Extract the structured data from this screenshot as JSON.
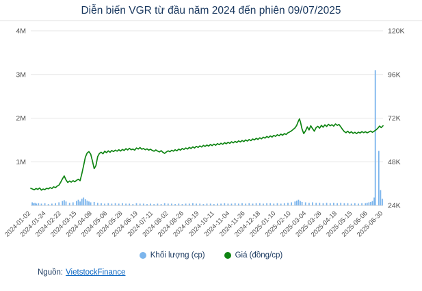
{
  "header": {
    "title": "Diễn biến VGR từ đầu năm 2024 đến phiên 09/07/2025"
  },
  "legend": {
    "volume": "Khối lượng (cp)",
    "price": "Giá (đồng/cp)"
  },
  "source": {
    "prefix": "Nguồn:",
    "link": "VietstockFinance"
  },
  "colors": {
    "price_line": "#0e8412",
    "volume_bar": "#7cb5ec",
    "grid": "#e6e6e6",
    "axis_line": "#cfcfcf",
    "axis_text": "#4d4d4d",
    "title_text": "#17365d",
    "link": "#0563c1"
  },
  "chart_data": {
    "type": "combo-bar-line",
    "title": "Diễn biến VGR từ đầu năm 2024 đến phiên 09/07/2025",
    "x_unit": "fraction of date range 2024-01-02 to 2025-07-09 (ticks evenly spaced)",
    "x_tick_labels": [
      "2024-01-02",
      "2024-01-24",
      "2024-02-22",
      "2024-03-15",
      "2024-04-08",
      "2024-05-06",
      "2024-05-28",
      "2024-06-19",
      "2024-07-11",
      "2024-08-02",
      "2024-08-26",
      "2024-09-19",
      "2024-10-11",
      "2024-11-04",
      "2024-11-26",
      "2024-12-18",
      "2025-01-10",
      "2025-02-10",
      "2025-03-04",
      "2025-03-26",
      "2025-04-18",
      "2025-05-15",
      "2025-06-06",
      "2025-06-30"
    ],
    "left_axis": {
      "name": "Khối lượng (cp)",
      "ticks": [
        "4M",
        "3M",
        "2M",
        "1M"
      ],
      "min_m": 0,
      "max_m": 4
    },
    "right_axis": {
      "name": "Giá (đồng/cp)",
      "ticks": [
        "120K",
        "96K",
        "72K",
        "48K",
        "24K"
      ],
      "min_k": 24,
      "max_k": 120
    },
    "price_series": {
      "name": "Giá (đồng/cp)",
      "type": "line",
      "values_unit": "nghìn đồng/cp (K)",
      "points": [
        [
          0.0,
          33.4
        ],
        [
          0.005,
          33.0
        ],
        [
          0.01,
          32.6
        ],
        [
          0.015,
          33.3
        ],
        [
          0.02,
          32.8
        ],
        [
          0.025,
          33.6
        ],
        [
          0.03,
          32.4
        ],
        [
          0.035,
          33.0
        ],
        [
          0.04,
          32.7
        ],
        [
          0.045,
          33.4
        ],
        [
          0.05,
          33.1
        ],
        [
          0.055,
          33.8
        ],
        [
          0.06,
          33.3
        ],
        [
          0.065,
          34.2
        ],
        [
          0.07,
          33.8
        ],
        [
          0.075,
          34.6
        ],
        [
          0.08,
          35.2
        ],
        [
          0.085,
          36.8
        ],
        [
          0.09,
          38.6
        ],
        [
          0.095,
          40.2
        ],
        [
          0.1,
          38.0
        ],
        [
          0.105,
          36.6
        ],
        [
          0.11,
          37.4
        ],
        [
          0.115,
          36.8
        ],
        [
          0.12,
          37.6
        ],
        [
          0.125,
          37.0
        ],
        [
          0.13,
          37.8
        ],
        [
          0.135,
          38.4
        ],
        [
          0.14,
          37.6
        ],
        [
          0.145,
          41.5
        ],
        [
          0.15,
          46.0
        ],
        [
          0.155,
          50.5
        ],
        [
          0.16,
          52.8
        ],
        [
          0.165,
          53.6
        ],
        [
          0.17,
          52.2
        ],
        [
          0.175,
          48.5
        ],
        [
          0.18,
          44.2
        ],
        [
          0.185,
          46.0
        ],
        [
          0.19,
          50.8
        ],
        [
          0.195,
          52.6
        ],
        [
          0.2,
          53.2
        ],
        [
          0.205,
          52.4
        ],
        [
          0.21,
          53.8
        ],
        [
          0.215,
          53.0
        ],
        [
          0.22,
          54.0
        ],
        [
          0.225,
          53.2
        ],
        [
          0.23,
          54.2
        ],
        [
          0.235,
          53.6
        ],
        [
          0.24,
          54.4
        ],
        [
          0.245,
          53.8
        ],
        [
          0.25,
          54.6
        ],
        [
          0.255,
          53.9
        ],
        [
          0.26,
          54.8
        ],
        [
          0.265,
          54.2
        ],
        [
          0.27,
          55.2
        ],
        [
          0.275,
          54.5
        ],
        [
          0.28,
          55.4
        ],
        [
          0.285,
          54.6
        ],
        [
          0.29,
          55.0
        ],
        [
          0.295,
          54.4
        ],
        [
          0.3,
          55.6
        ],
        [
          0.305,
          55.0
        ],
        [
          0.31,
          55.8
        ],
        [
          0.315,
          54.9
        ],
        [
          0.32,
          55.3
        ],
        [
          0.325,
          54.6
        ],
        [
          0.33,
          55.1
        ],
        [
          0.335,
          54.4
        ],
        [
          0.34,
          54.9
        ],
        [
          0.345,
          54.2
        ],
        [
          0.35,
          53.8
        ],
        [
          0.355,
          54.5
        ],
        [
          0.36,
          53.9
        ],
        [
          0.365,
          53.4
        ],
        [
          0.37,
          54.1
        ],
        [
          0.375,
          53.2
        ],
        [
          0.38,
          52.6
        ],
        [
          0.385,
          53.4
        ],
        [
          0.39,
          54.0
        ],
        [
          0.395,
          53.5
        ],
        [
          0.4,
          54.3
        ],
        [
          0.405,
          53.8
        ],
        [
          0.41,
          54.6
        ],
        [
          0.415,
          54.0
        ],
        [
          0.42,
          55.0
        ],
        [
          0.425,
          54.4
        ],
        [
          0.43,
          55.3
        ],
        [
          0.435,
          54.8
        ],
        [
          0.44,
          55.6
        ],
        [
          0.445,
          55.0
        ],
        [
          0.45,
          55.9
        ],
        [
          0.455,
          55.3
        ],
        [
          0.46,
          56.2
        ],
        [
          0.465,
          55.6
        ],
        [
          0.47,
          56.5
        ],
        [
          0.475,
          55.9
        ],
        [
          0.48,
          56.7
        ],
        [
          0.485,
          56.1
        ],
        [
          0.49,
          57.0
        ],
        [
          0.495,
          56.4
        ],
        [
          0.5,
          57.2
        ],
        [
          0.505,
          56.6
        ],
        [
          0.51,
          57.5
        ],
        [
          0.515,
          56.9
        ],
        [
          0.52,
          57.7
        ],
        [
          0.525,
          57.1
        ],
        [
          0.53,
          58.0
        ],
        [
          0.535,
          57.4
        ],
        [
          0.54,
          58.2
        ],
        [
          0.545,
          57.6
        ],
        [
          0.55,
          58.5
        ],
        [
          0.555,
          57.9
        ],
        [
          0.56,
          58.7
        ],
        [
          0.565,
          58.1
        ],
        [
          0.57,
          59.0
        ],
        [
          0.575,
          58.4
        ],
        [
          0.58,
          59.2
        ],
        [
          0.585,
          58.6
        ],
        [
          0.59,
          59.5
        ],
        [
          0.595,
          58.9
        ],
        [
          0.6,
          59.7
        ],
        [
          0.605,
          59.1
        ],
        [
          0.61,
          60.0
        ],
        [
          0.615,
          59.4
        ],
        [
          0.62,
          60.2
        ],
        [
          0.625,
          59.6
        ],
        [
          0.63,
          60.5
        ],
        [
          0.635,
          60.0
        ],
        [
          0.64,
          60.9
        ],
        [
          0.645,
          60.3
        ],
        [
          0.65,
          61.2
        ],
        [
          0.655,
          60.6
        ],
        [
          0.66,
          61.5
        ],
        [
          0.665,
          61.0
        ],
        [
          0.67,
          61.9
        ],
        [
          0.675,
          61.3
        ],
        [
          0.68,
          62.2
        ],
        [
          0.685,
          61.6
        ],
        [
          0.69,
          62.5
        ],
        [
          0.695,
          62.0
        ],
        [
          0.7,
          62.9
        ],
        [
          0.705,
          62.3
        ],
        [
          0.71,
          63.2
        ],
        [
          0.715,
          62.6
        ],
        [
          0.72,
          63.5
        ],
        [
          0.725,
          63.0
        ],
        [
          0.73,
          63.9
        ],
        [
          0.735,
          64.4
        ],
        [
          0.74,
          65.0
        ],
        [
          0.745,
          65.8
        ],
        [
          0.75,
          66.6
        ],
        [
          0.755,
          68.0
        ],
        [
          0.76,
          70.5
        ],
        [
          0.763,
          71.6
        ],
        [
          0.766,
          69.5
        ],
        [
          0.77,
          66.0
        ],
        [
          0.775,
          63.5
        ],
        [
          0.78,
          65.0
        ],
        [
          0.785,
          67.2
        ],
        [
          0.79,
          65.5
        ],
        [
          0.795,
          67.8
        ],
        [
          0.8,
          66.2
        ],
        [
          0.805,
          64.8
        ],
        [
          0.81,
          66.8
        ],
        [
          0.815,
          67.5
        ],
        [
          0.82,
          66.5
        ],
        [
          0.825,
          68.0
        ],
        [
          0.83,
          67.0
        ],
        [
          0.835,
          68.3
        ],
        [
          0.84,
          67.4
        ],
        [
          0.845,
          68.6
        ],
        [
          0.85,
          67.8
        ],
        [
          0.855,
          68.4
        ],
        [
          0.86,
          67.6
        ],
        [
          0.865,
          68.8
        ],
        [
          0.87,
          68.0
        ],
        [
          0.875,
          68.5
        ],
        [
          0.88,
          67.2
        ],
        [
          0.885,
          65.8
        ],
        [
          0.89,
          64.6
        ],
        [
          0.895,
          64.0
        ],
        [
          0.9,
          64.8
        ],
        [
          0.905,
          63.8
        ],
        [
          0.91,
          64.5
        ],
        [
          0.915,
          63.6
        ],
        [
          0.92,
          64.2
        ],
        [
          0.925,
          63.5
        ],
        [
          0.93,
          64.3
        ],
        [
          0.935,
          63.8
        ],
        [
          0.94,
          64.6
        ],
        [
          0.945,
          64.0
        ],
        [
          0.95,
          64.5
        ],
        [
          0.955,
          63.9
        ],
        [
          0.96,
          64.4
        ],
        [
          0.965,
          64.9
        ],
        [
          0.97,
          64.2
        ],
        [
          0.975,
          64.8
        ],
        [
          0.98,
          65.5
        ],
        [
          0.985,
          66.4
        ],
        [
          0.99,
          67.6
        ],
        [
          0.995,
          66.8
        ],
        [
          1.0,
          67.8
        ]
      ]
    },
    "volume_series": {
      "name": "Khối lượng (cp)",
      "type": "bar",
      "values_unit": "triệu cp (M)",
      "points": [
        [
          0.004,
          0.07
        ],
        [
          0.008,
          0.05
        ],
        [
          0.012,
          0.06
        ],
        [
          0.016,
          0.04
        ],
        [
          0.022,
          0.05
        ],
        [
          0.03,
          0.04
        ],
        [
          0.04,
          0.05
        ],
        [
          0.05,
          0.03
        ],
        [
          0.06,
          0.04
        ],
        [
          0.07,
          0.05
        ],
        [
          0.08,
          0.07
        ],
        [
          0.09,
          0.1
        ],
        [
          0.095,
          0.12
        ],
        [
          0.1,
          0.09
        ],
        [
          0.11,
          0.06
        ],
        [
          0.12,
          0.07
        ],
        [
          0.13,
          0.1
        ],
        [
          0.135,
          0.13
        ],
        [
          0.14,
          0.09
        ],
        [
          0.145,
          0.15
        ],
        [
          0.15,
          0.18
        ],
        [
          0.155,
          0.14
        ],
        [
          0.16,
          0.11
        ],
        [
          0.165,
          0.09
        ],
        [
          0.17,
          0.07
        ],
        [
          0.18,
          0.08
        ],
        [
          0.19,
          0.06
        ],
        [
          0.2,
          0.05
        ],
        [
          0.21,
          0.04
        ],
        [
          0.22,
          0.05
        ],
        [
          0.23,
          0.04
        ],
        [
          0.24,
          0.05
        ],
        [
          0.25,
          0.04
        ],
        [
          0.26,
          0.05
        ],
        [
          0.27,
          0.04
        ],
        [
          0.28,
          0.04
        ],
        [
          0.29,
          0.03
        ],
        [
          0.3,
          0.05
        ],
        [
          0.31,
          0.04
        ],
        [
          0.32,
          0.04
        ],
        [
          0.33,
          0.03
        ],
        [
          0.34,
          0.04
        ],
        [
          0.35,
          0.03
        ],
        [
          0.36,
          0.04
        ],
        [
          0.37,
          0.03
        ],
        [
          0.38,
          0.05
        ],
        [
          0.39,
          0.04
        ],
        [
          0.4,
          0.04
        ],
        [
          0.41,
          0.03
        ],
        [
          0.42,
          0.04
        ],
        [
          0.43,
          0.03
        ],
        [
          0.44,
          0.04
        ],
        [
          0.45,
          0.04
        ],
        [
          0.46,
          0.05
        ],
        [
          0.47,
          0.04
        ],
        [
          0.48,
          0.04
        ],
        [
          0.49,
          0.03
        ],
        [
          0.5,
          0.04
        ],
        [
          0.51,
          0.04
        ],
        [
          0.52,
          0.03
        ],
        [
          0.53,
          0.04
        ],
        [
          0.54,
          0.04
        ],
        [
          0.55,
          0.05
        ],
        [
          0.56,
          0.04
        ],
        [
          0.57,
          0.04
        ],
        [
          0.58,
          0.05
        ],
        [
          0.59,
          0.04
        ],
        [
          0.6,
          0.05
        ],
        [
          0.61,
          0.04
        ],
        [
          0.62,
          0.05
        ],
        [
          0.63,
          0.04
        ],
        [
          0.64,
          0.05
        ],
        [
          0.65,
          0.05
        ],
        [
          0.66,
          0.04
        ],
        [
          0.67,
          0.05
        ],
        [
          0.68,
          0.05
        ],
        [
          0.69,
          0.04
        ],
        [
          0.7,
          0.05
        ],
        [
          0.71,
          0.04
        ],
        [
          0.72,
          0.05
        ],
        [
          0.73,
          0.06
        ],
        [
          0.74,
          0.07
        ],
        [
          0.75,
          0.09
        ],
        [
          0.755,
          0.11
        ],
        [
          0.76,
          0.13
        ],
        [
          0.765,
          0.1
        ],
        [
          0.77,
          0.08
        ],
        [
          0.78,
          0.07
        ],
        [
          0.79,
          0.06
        ],
        [
          0.8,
          0.07
        ],
        [
          0.81,
          0.06
        ],
        [
          0.82,
          0.06
        ],
        [
          0.83,
          0.05
        ],
        [
          0.84,
          0.06
        ],
        [
          0.85,
          0.05
        ],
        [
          0.86,
          0.06
        ],
        [
          0.87,
          0.05
        ],
        [
          0.88,
          0.06
        ],
        [
          0.89,
          0.05
        ],
        [
          0.9,
          0.05
        ],
        [
          0.91,
          0.04
        ],
        [
          0.92,
          0.05
        ],
        [
          0.93,
          0.04
        ],
        [
          0.94,
          0.05
        ],
        [
          0.95,
          0.05
        ],
        [
          0.955,
          0.06
        ],
        [
          0.96,
          0.07
        ],
        [
          0.965,
          0.08
        ],
        [
          0.97,
          0.1
        ],
        [
          0.975,
          0.18
        ],
        [
          0.978,
          3.1
        ],
        [
          0.988,
          1.25
        ],
        [
          0.993,
          0.35
        ],
        [
          0.998,
          0.15
        ]
      ]
    }
  }
}
